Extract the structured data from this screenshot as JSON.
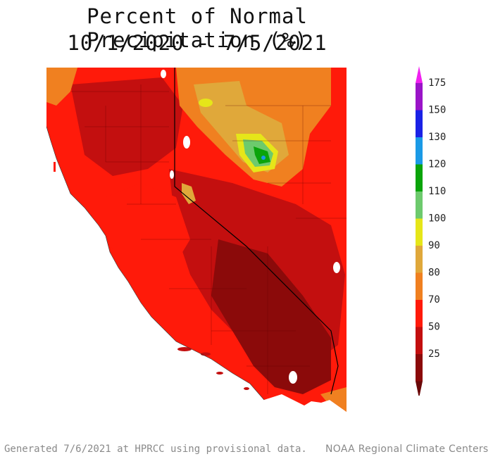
{
  "title": {
    "line1": "Percent of Normal Precipitation (%)",
    "line2": "10/1/2020 - 7/5/2021"
  },
  "legend": {
    "stops": [
      {
        "value": "25",
        "color": "#8b0a0a"
      },
      {
        "value": "50",
        "color": "#c30f0f"
      },
      {
        "value": "70",
        "color": "#ff1a0a"
      },
      {
        "value": "80",
        "color": "#f08020"
      },
      {
        "value": "90",
        "color": "#e0a83a"
      },
      {
        "value": "100",
        "color": "#e6e619"
      },
      {
        "value": "110",
        "color": "#6dca6d"
      },
      {
        "value": "120",
        "color": "#0aa40a"
      },
      {
        "value": "130",
        "color": "#1a9ae6"
      },
      {
        "value": "150",
        "color": "#1a22e6"
      },
      {
        "value": "175",
        "color": "#9a14c8"
      }
    ],
    "top_color": "#f020f0",
    "bottom_color": "#6a0808"
  },
  "footer": {
    "generated": "Generated 7/6/2021 at HPRCC using provisional data.",
    "source": "NOAA Regional Climate Centers"
  }
}
